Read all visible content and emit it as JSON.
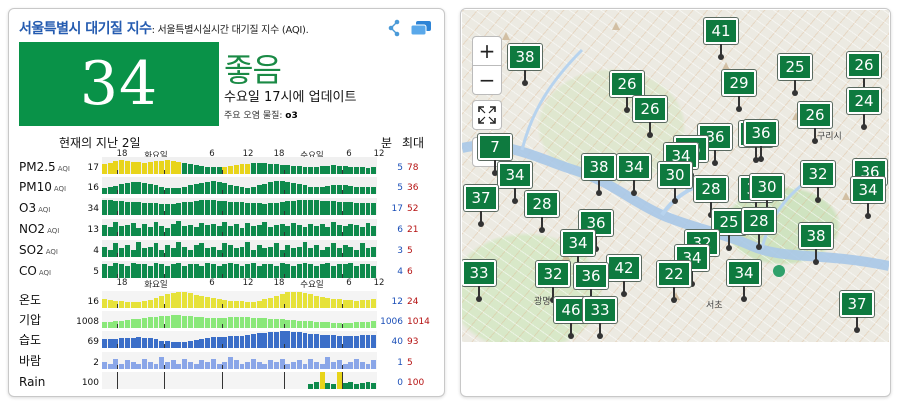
{
  "header": {
    "title": "서울특별시 대기질 지수",
    "subtitle": ": 서울특별시실시간 대기질 지수 (AQI).",
    "share_icon": "share-icon",
    "window_icon": "window-icon"
  },
  "aqi": {
    "value": "34",
    "level": "좋음",
    "color": "#099248",
    "updated": "수요일 17시에 업데이트",
    "pollutant_label": "주요 오염 물질: ",
    "pollutant": "o3"
  },
  "history": {
    "title": "현재의 지난 2일",
    "min_header": "분",
    "max_header": "최대",
    "time_labels_top": [
      "18",
      "화요일",
      "6",
      "12",
      "18",
      "수요일",
      "6",
      "12"
    ],
    "time_labels_weather": [
      "18",
      "화요일",
      "6",
      "12",
      "18",
      "수요일",
      "6",
      "12"
    ],
    "rows": [
      {
        "name": "PM2.5",
        "unit": "AQI",
        "current": "17",
        "min": "5",
        "max": "78"
      },
      {
        "name": "PM10",
        "unit": "AQI",
        "current": "16",
        "min": "5",
        "max": "36"
      },
      {
        "name": "O3",
        "unit": "AQI",
        "current": "34",
        "min": "17",
        "max": "52"
      },
      {
        "name": "NO2",
        "unit": "AQI",
        "current": "13",
        "min": "6",
        "max": "21"
      },
      {
        "name": "SO2",
        "unit": "AQI",
        "current": "4",
        "min": "3",
        "max": "5"
      },
      {
        "name": "CO",
        "unit": "AQI",
        "current": "5",
        "min": "4",
        "max": "6"
      },
      {
        "name": "온도",
        "unit": "",
        "current": "16",
        "min": "12",
        "max": "24"
      },
      {
        "name": "기압",
        "unit": "",
        "current": "1008",
        "min": "1006",
        "max": "1014"
      },
      {
        "name": "습도",
        "unit": "",
        "current": "69",
        "min": "40",
        "max": "93"
      },
      {
        "name": "바람",
        "unit": "",
        "current": "2",
        "min": "1",
        "max": "5"
      },
      {
        "name": "Rain",
        "unit": "",
        "current": "100",
        "min": "0",
        "max": "100"
      }
    ],
    "series": {
      "pm25": [
        0.56,
        0.62,
        0.74,
        0.8,
        0.78,
        0.72,
        0.68,
        0.66,
        0.7,
        0.74,
        0.78,
        0.8,
        0.76,
        0.7,
        0.64,
        0.58,
        0.52,
        0.48,
        0.44,
        0.42,
        0.4,
        0.44,
        0.48,
        0.52,
        0.56,
        0.6,
        0.62,
        0.64,
        0.62,
        0.58,
        0.56,
        0.54,
        0.5,
        0.48,
        0.46,
        0.44,
        0.42,
        0.44,
        0.46,
        0.48,
        0.5,
        0.48,
        0.46,
        0.44,
        0.42,
        0.4,
        0.38,
        0.4
      ],
      "pm10": [
        0.36,
        0.42,
        0.48,
        0.56,
        0.62,
        0.68,
        0.7,
        0.66,
        0.6,
        0.52,
        0.44,
        0.38,
        0.34,
        0.36,
        0.42,
        0.5,
        0.58,
        0.66,
        0.72,
        0.74,
        0.7,
        0.62,
        0.54,
        0.46,
        0.4,
        0.38,
        0.42,
        0.5,
        0.6,
        0.68,
        0.74,
        0.76,
        0.72,
        0.66,
        0.58,
        0.5,
        0.44,
        0.4,
        0.42,
        0.46,
        0.5,
        0.52,
        0.5,
        0.46,
        0.42,
        0.4,
        0.42,
        0.44
      ],
      "o3": [
        0.9,
        0.86,
        0.82,
        0.8,
        0.78,
        0.76,
        0.74,
        0.72,
        0.7,
        0.68,
        0.66,
        0.64,
        0.66,
        0.7,
        0.74,
        0.78,
        0.82,
        0.86,
        0.88,
        0.86,
        0.84,
        0.8,
        0.78,
        0.76,
        0.74,
        0.72,
        0.7,
        0.68,
        0.66,
        0.68,
        0.72,
        0.76,
        0.8,
        0.84,
        0.88,
        0.9,
        0.88,
        0.86,
        0.84,
        0.82,
        0.8,
        0.78,
        0.76,
        0.74,
        0.72,
        0.7,
        0.68,
        0.7
      ],
      "no2": [
        0.66,
        0.52,
        0.84,
        0.58,
        0.62,
        0.78,
        0.46,
        0.7,
        0.54,
        0.8,
        0.6,
        0.48,
        0.72,
        0.86,
        0.56,
        0.64,
        0.5,
        0.76,
        0.62,
        0.7,
        0.56,
        0.82,
        0.6,
        0.68,
        0.48,
        0.74,
        0.58,
        0.66,
        0.84,
        0.52,
        0.64,
        0.7,
        0.56,
        0.78,
        0.62,
        0.5,
        0.72,
        0.6,
        0.68,
        0.54,
        0.8,
        0.62,
        0.58,
        0.7,
        0.66,
        0.52,
        0.74,
        0.6
      ],
      "so2": [
        0.6,
        0.4,
        0.8,
        0.5,
        0.7,
        0.4,
        0.9,
        0.5,
        0.6,
        0.8,
        0.4,
        0.7,
        0.5,
        0.9,
        0.6,
        0.4,
        0.7,
        0.8,
        0.5,
        0.6,
        0.4,
        0.8,
        0.7,
        0.5,
        0.6,
        0.9,
        0.4,
        0.7,
        0.5,
        0.6,
        0.8,
        0.4,
        0.7,
        0.5,
        0.6,
        0.9,
        0.5,
        0.7,
        0.4,
        0.6,
        0.8,
        0.5,
        0.7,
        0.6,
        0.4,
        0.8,
        0.5,
        0.6
      ],
      "co": [
        0.8,
        0.7,
        0.9,
        0.8,
        0.7,
        0.9,
        0.8,
        0.8,
        0.7,
        0.9,
        0.8,
        0.7,
        0.8,
        0.9,
        0.7,
        0.8,
        0.8,
        0.7,
        0.9,
        0.8,
        0.7,
        0.8,
        0.9,
        0.8,
        0.7,
        0.8,
        0.9,
        0.7,
        0.8,
        0.8,
        0.7,
        0.9,
        0.8,
        0.7,
        0.8,
        0.9,
        0.8,
        0.7,
        0.8,
        0.9,
        0.7,
        0.8,
        0.8,
        0.9,
        0.7,
        0.8,
        0.8,
        0.7
      ],
      "temp": [
        0.52,
        0.48,
        0.44,
        0.4,
        0.38,
        0.36,
        0.36,
        0.4,
        0.48,
        0.58,
        0.7,
        0.82,
        0.9,
        0.94,
        0.92,
        0.86,
        0.78,
        0.7,
        0.62,
        0.56,
        0.5,
        0.46,
        0.44,
        0.42,
        0.4,
        0.38,
        0.38,
        0.42,
        0.5,
        0.6,
        0.72,
        0.84,
        0.92,
        0.96,
        0.94,
        0.88,
        0.8,
        0.72,
        0.64,
        0.58,
        0.54,
        0.5,
        0.48,
        0.46,
        0.44,
        0.46,
        0.48,
        0.5
      ],
      "pressure": [
        0.36,
        0.38,
        0.4,
        0.42,
        0.46,
        0.5,
        0.54,
        0.58,
        0.62,
        0.66,
        0.7,
        0.72,
        0.74,
        0.74,
        0.72,
        0.7,
        0.66,
        0.62,
        0.6,
        0.58,
        0.58,
        0.6,
        0.62,
        0.64,
        0.64,
        0.62,
        0.6,
        0.58,
        0.56,
        0.54,
        0.52,
        0.5,
        0.48,
        0.46,
        0.44,
        0.42,
        0.4,
        0.38,
        0.36,
        0.34,
        0.32,
        0.3,
        0.3,
        0.32,
        0.34,
        0.36,
        0.38,
        0.4
      ],
      "humidity": [
        0.5,
        0.52,
        0.54,
        0.56,
        0.58,
        0.6,
        0.62,
        0.6,
        0.56,
        0.5,
        0.44,
        0.4,
        0.38,
        0.36,
        0.38,
        0.42,
        0.48,
        0.54,
        0.58,
        0.62,
        0.64,
        0.66,
        0.68,
        0.7,
        0.72,
        0.76,
        0.8,
        0.86,
        0.9,
        0.94,
        0.96,
        0.98,
        0.98,
        0.96,
        0.92,
        0.88,
        0.84,
        0.8,
        0.78,
        0.76,
        0.74,
        0.72,
        0.7,
        0.7,
        0.72,
        0.74,
        0.76,
        0.78
      ],
      "wind": [
        0.4,
        0.3,
        0.6,
        0.3,
        0.5,
        0.4,
        0.3,
        0.6,
        0.4,
        0.3,
        0.7,
        0.4,
        0.5,
        0.3,
        0.6,
        0.4,
        0.3,
        0.5,
        0.4,
        0.6,
        0.3,
        0.4,
        0.7,
        0.5,
        0.3,
        0.4,
        0.6,
        0.4,
        0.3,
        0.5,
        0.4,
        0.6,
        0.3,
        0.4,
        0.5,
        0.3,
        0.6,
        0.4,
        0.3,
        0.7,
        0.4,
        0.5,
        0.3,
        0.4,
        0.6,
        0.4,
        0.3,
        0.5
      ],
      "rain": [
        0,
        0,
        0,
        0,
        0,
        0,
        0,
        0,
        0,
        0,
        0,
        0,
        0,
        0,
        0,
        0,
        0,
        0,
        0,
        0,
        0,
        0,
        0,
        0,
        0,
        0,
        0,
        0,
        0,
        0,
        0,
        0,
        0,
        0,
        0,
        0,
        0.3,
        0.4,
        1.0,
        0.35,
        0.3,
        1.0,
        0.35,
        0.4,
        0.3,
        0.35,
        0.4,
        0.35
      ]
    },
    "colors": {
      "aqi_good": "#0e8a4c",
      "aqi_moderate": "#e8d41a",
      "temp": "#e6e23a",
      "pressure": "#8ae87a",
      "humidity": "#3b6ec8",
      "wind": "#8aa6e8",
      "rain": "#0e8a4c"
    }
  },
  "map": {
    "zoom_in": "+",
    "zoom_out": "−",
    "fullscreen_icon": "fullscreen-icon",
    "layers_icon": "map-layers-icon",
    "labels": [
      "구리시",
      "광명",
      "서초"
    ],
    "markers": [
      "41",
      "38",
      "25",
      "26",
      "26",
      "24",
      "26",
      "29",
      "26",
      "31",
      "36",
      "7",
      "36",
      "38",
      "34",
      "26",
      "34",
      "34",
      "30",
      "28",
      "31",
      "30",
      "36",
      "32",
      "37",
      "34",
      "28",
      "25",
      "36",
      "28",
      "34",
      "32",
      "38",
      "34",
      "33",
      "42",
      "32",
      "36",
      "22",
      "34",
      "46",
      "33",
      "37"
    ]
  }
}
